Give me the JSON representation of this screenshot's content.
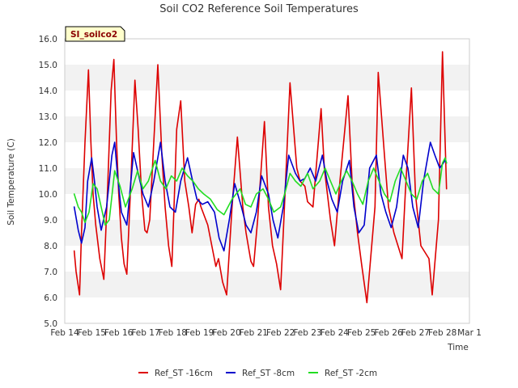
{
  "chart_data": {
    "type": "line",
    "title": "Soil CO2 Reference Soil Temperatures",
    "xlabel": "Time",
    "ylabel": "Soil Temperature (C)",
    "ylim": [
      5.0,
      16.0
    ],
    "yticks": [
      "5.0",
      "6.0",
      "7.0",
      "8.0",
      "9.0",
      "10.0",
      "11.0",
      "12.0",
      "13.0",
      "14.0",
      "15.0",
      "16.0"
    ],
    "xlim": [
      0,
      15
    ],
    "xticks": [
      "Feb 14",
      "Feb 15",
      "Feb 16",
      "Feb 17",
      "Feb 18",
      "Feb 19",
      "Feb 20",
      "Feb 21",
      "Feb 22",
      "Feb 23",
      "Feb 24",
      "Feb 25",
      "Feb 26",
      "Feb 27",
      "Feb 28",
      "Mar 1"
    ],
    "grid": "horizontal bands",
    "badge": "SI_soilco2",
    "legend_position": "bottom",
    "series": [
      {
        "name": "Ref_ST -16cm",
        "color": "#dd0000",
        "x": [
          0.35,
          0.42,
          0.55,
          0.62,
          0.75,
          0.88,
          0.97,
          1.05,
          1.15,
          1.3,
          1.45,
          1.6,
          1.72,
          1.82,
          1.92,
          2.0,
          2.1,
          2.2,
          2.3,
          2.45,
          2.6,
          2.72,
          2.85,
          2.97,
          3.05,
          3.15,
          3.3,
          3.45,
          3.6,
          3.72,
          3.85,
          3.97,
          4.05,
          4.15,
          4.3,
          4.45,
          4.6,
          4.72,
          4.85,
          4.97,
          5.05,
          5.3,
          5.6,
          5.7,
          5.85,
          6.0,
          6.2,
          6.4,
          6.6,
          6.72,
          6.9,
          7.0,
          7.15,
          7.4,
          7.55,
          7.7,
          7.85,
          8.0,
          8.1,
          8.35,
          8.6,
          8.72,
          8.9,
          9.0,
          9.2,
          9.5,
          9.62,
          9.85,
          10.0,
          10.2,
          10.5,
          10.65,
          10.85,
          11.0,
          11.2,
          11.5,
          11.62,
          11.85,
          12.0,
          12.2,
          12.5,
          12.62,
          12.85,
          13.0,
          13.2,
          13.5,
          13.62,
          13.85,
          14.0,
          14.1,
          14.15
        ],
        "values": [
          7.8,
          7.0,
          6.1,
          8.5,
          12.0,
          14.8,
          12.0,
          10.0,
          8.8,
          7.5,
          6.7,
          10.5,
          14.0,
          15.2,
          12.0,
          10.0,
          8.3,
          7.3,
          6.9,
          10.5,
          14.4,
          12.5,
          10.0,
          8.6,
          8.5,
          9.0,
          12.0,
          15.0,
          11.5,
          9.5,
          8.0,
          7.2,
          9.5,
          12.5,
          13.6,
          10.5,
          9.5,
          8.5,
          9.6,
          9.8,
          9.5,
          8.8,
          7.2,
          7.5,
          6.6,
          6.1,
          9.5,
          12.2,
          9.5,
          8.5,
          7.4,
          7.2,
          9.0,
          12.8,
          9.5,
          8.0,
          7.3,
          6.3,
          8.5,
          14.3,
          11.0,
          10.5,
          10.3,
          9.7,
          9.5,
          13.3,
          11.0,
          9.0,
          8.0,
          10.5,
          13.8,
          10.5,
          8.5,
          7.3,
          5.8,
          9.5,
          14.7,
          11.5,
          9.5,
          8.5,
          7.5,
          10.0,
          14.1,
          10.0,
          8.0,
          7.5,
          6.1,
          9.0,
          15.5,
          12.0,
          10.2
        ]
      },
      {
        "name": "Ref_ST -8cm",
        "color": "#0000cc",
        "x": [
          0.35,
          0.5,
          0.62,
          0.75,
          0.85,
          1.0,
          1.1,
          1.2,
          1.35,
          1.55,
          1.75,
          1.85,
          1.95,
          2.1,
          2.3,
          2.55,
          2.72,
          2.9,
          3.1,
          3.3,
          3.55,
          3.72,
          3.9,
          4.1,
          4.3,
          4.55,
          4.72,
          4.9,
          5.1,
          5.3,
          5.55,
          5.72,
          5.9,
          6.1,
          6.3,
          6.55,
          6.72,
          6.9,
          7.1,
          7.3,
          7.55,
          7.72,
          7.9,
          8.1,
          8.3,
          8.55,
          8.72,
          8.9,
          9.1,
          9.3,
          9.55,
          9.72,
          9.9,
          10.1,
          10.3,
          10.55,
          10.72,
          10.9,
          11.1,
          11.3,
          11.55,
          11.72,
          11.9,
          12.1,
          12.3,
          12.55,
          12.72,
          12.9,
          13.1,
          13.3,
          13.55,
          13.72,
          13.9,
          14.1,
          14.15
        ],
        "values": [
          9.5,
          8.6,
          8.1,
          8.7,
          10.5,
          11.4,
          10.5,
          9.5,
          8.6,
          9.5,
          11.5,
          12.0,
          10.8,
          9.3,
          8.8,
          11.6,
          10.8,
          10.0,
          9.5,
          10.5,
          12.0,
          10.5,
          9.5,
          9.3,
          10.5,
          11.4,
          10.6,
          9.8,
          9.6,
          9.7,
          9.3,
          8.3,
          7.8,
          9.0,
          10.4,
          9.5,
          8.8,
          8.5,
          9.3,
          10.7,
          10.0,
          9.0,
          8.3,
          9.5,
          11.5,
          10.8,
          10.5,
          10.6,
          11.0,
          10.5,
          11.5,
          10.5,
          9.8,
          9.3,
          10.5,
          11.3,
          9.5,
          8.5,
          8.8,
          11.0,
          11.5,
          10.0,
          9.3,
          8.7,
          9.5,
          11.5,
          11.0,
          9.5,
          8.7,
          10.5,
          12.0,
          11.5,
          11.0,
          11.3,
          11.2
        ]
      },
      {
        "name": "Ref_ST -2cm",
        "color": "#22dd22",
        "x": [
          0.35,
          0.5,
          0.62,
          0.75,
          0.9,
          1.05,
          1.2,
          1.35,
          1.5,
          1.65,
          1.85,
          2.05,
          2.25,
          2.5,
          2.7,
          2.9,
          3.1,
          3.35,
          3.55,
          3.75,
          3.95,
          4.15,
          4.35,
          4.55,
          4.75,
          4.95,
          5.15,
          5.4,
          5.65,
          5.9,
          6.2,
          6.5,
          6.7,
          6.9,
          7.1,
          7.35,
          7.55,
          7.75,
          8.0,
          8.15,
          8.35,
          8.55,
          8.75,
          9.0,
          9.2,
          9.45,
          9.65,
          9.85,
          10.05,
          10.25,
          10.45,
          10.65,
          10.85,
          11.05,
          11.25,
          11.45,
          11.65,
          11.85,
          12.05,
          12.25,
          12.45,
          12.65,
          12.85,
          13.05,
          13.25,
          13.45,
          13.65,
          13.85,
          14.0,
          14.1,
          14.15
        ],
        "values": [
          10.0,
          9.5,
          9.3,
          8.9,
          9.3,
          10.4,
          10.2,
          9.5,
          8.8,
          9.0,
          10.9,
          10.3,
          9.5,
          10.2,
          10.9,
          10.2,
          10.5,
          11.3,
          10.5,
          10.2,
          10.7,
          10.5,
          11.0,
          10.7,
          10.5,
          10.2,
          10.0,
          9.8,
          9.4,
          9.2,
          9.8,
          10.2,
          9.6,
          9.5,
          10.0,
          10.2,
          9.8,
          9.3,
          9.5,
          10.0,
          10.8,
          10.5,
          10.3,
          10.8,
          10.2,
          10.5,
          11.0,
          10.5,
          10.0,
          10.5,
          10.9,
          10.5,
          10.0,
          9.6,
          10.5,
          11.0,
          10.5,
          10.0,
          9.7,
          10.5,
          11.0,
          10.5,
          10.0,
          9.8,
          10.5,
          10.8,
          10.2,
          10.0,
          11.2,
          11.4,
          11.2
        ]
      }
    ]
  }
}
